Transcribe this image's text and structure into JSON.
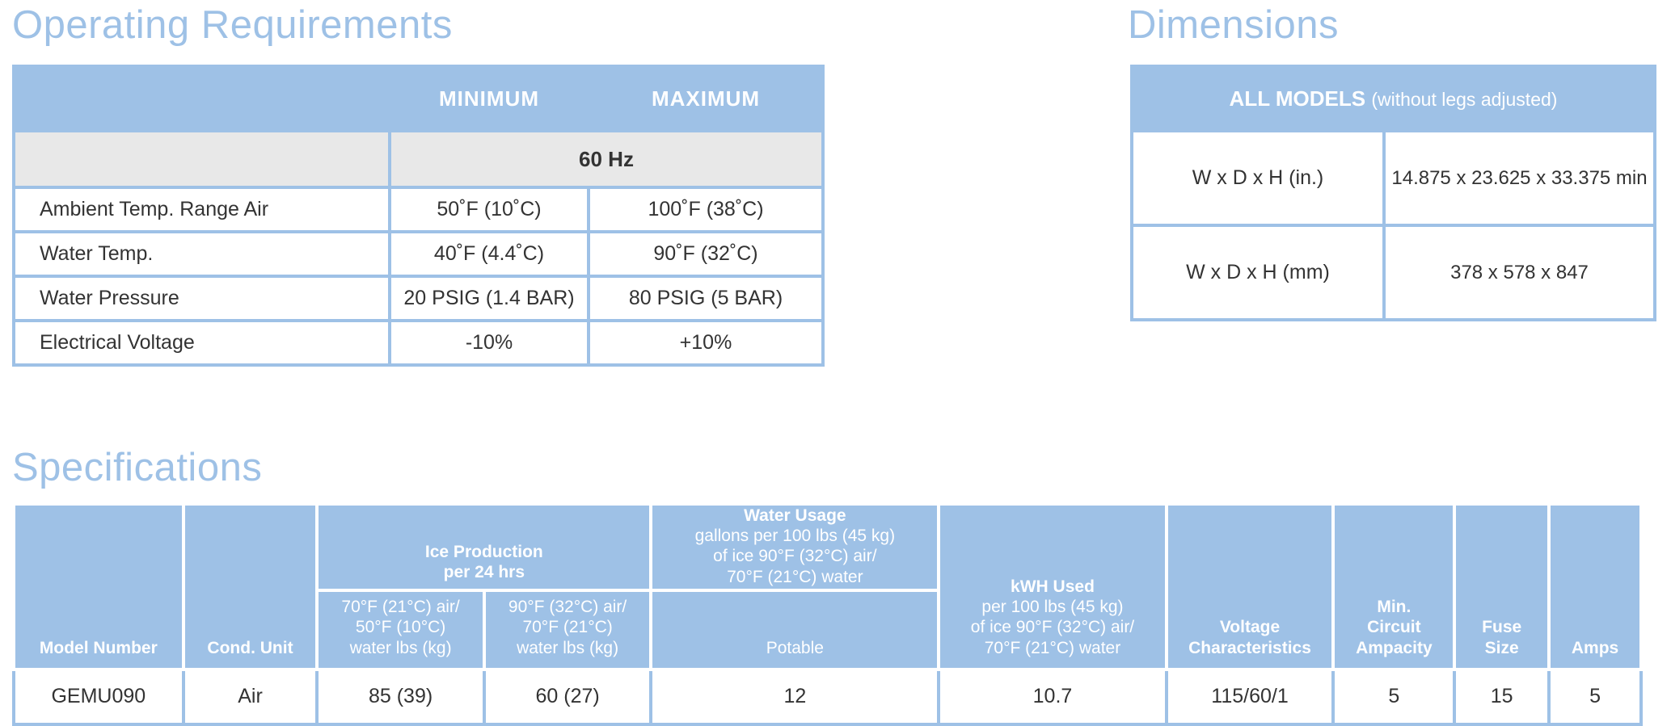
{
  "operating": {
    "title": "Operating Requirements",
    "col_min": "MINIMUM",
    "col_max": "MAXIMUM",
    "freq": "60 Hz",
    "rows": [
      {
        "label": "Ambient Temp. Range Air",
        "min": "50˚F (10˚C)",
        "max": "100˚F (38˚C)"
      },
      {
        "label": "Water Temp.",
        "min": "40˚F (4.4˚C)",
        "max": "90˚F (32˚C)"
      },
      {
        "label": "Water Pressure",
        "min": "20 PSIG (1.4 BAR)",
        "max": "80 PSIG (5 BAR)"
      },
      {
        "label": "Electrical Voltage",
        "min": "-10%",
        "max": "+10%"
      }
    ]
  },
  "dimensions": {
    "title": "Dimensions",
    "header_bold": "ALL MODELS",
    "header_sub": "(without legs adjusted)",
    "rows": [
      {
        "label": "W x D x H (in.)",
        "value": "14.875 x 23.625 x 33.375 min"
      },
      {
        "label": "W x D x H (mm)",
        "value": "378 x 578 x 847"
      }
    ]
  },
  "specifications": {
    "title": "Specifications",
    "headers": {
      "model": "Model Number",
      "cond": "Cond. Unit",
      "ice_line1": "Ice Production",
      "ice_line2": "per 24 hrs",
      "ice_a_1": "70°F (21°C) air/",
      "ice_a_2": "50°F (10°C)",
      "ice_a_3": "water lbs (kg)",
      "ice_b_1": "90°F (32°C) air/",
      "ice_b_2": "70°F (21°C)",
      "ice_b_3": "water lbs (kg)",
      "water_title": "Water Usage",
      "water_1": "gallons per 100 lbs (45 kg)",
      "water_2": "of ice 90°F (32°C) air/",
      "water_3": "70°F (21°C) water",
      "potable": "Potable",
      "kwh_title": "kWH Used",
      "kwh_1": "per 100 lbs (45 kg)",
      "kwh_2": "of ice 90°F (32°C) air/",
      "kwh_3": "70°F (21°C) water",
      "volt_1": "Voltage",
      "volt_2": "Characteristics",
      "mca_1": "Min.",
      "mca_2": "Circuit",
      "mca_3": "Ampacity",
      "fuse_1": "Fuse",
      "fuse_2": "Size",
      "amps": "Amps"
    },
    "row": {
      "model": "GEMU090",
      "cond": "Air",
      "ice_a": "85 (39)",
      "ice_b": "60 (27)",
      "potable": "12",
      "kwh": "10.7",
      "voltage": "115/60/1",
      "mca": "5",
      "fuse": "15",
      "amps": "5"
    }
  },
  "colors": {
    "accent": "#9ec1e6",
    "band_gray": "#e8e8e8",
    "text": "#333333"
  }
}
